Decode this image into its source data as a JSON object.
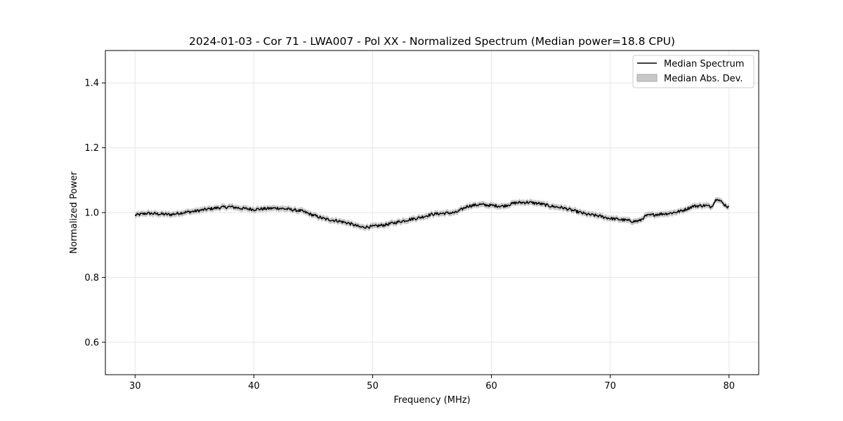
{
  "chart_data": {
    "type": "line",
    "title": "2024-01-03 - Cor 71 - LWA007 - Pol XX - Normalized Spectrum (Median power=18.8 CPU)",
    "xlabel": "Frequency (MHz)",
    "ylabel": "Normalized Power",
    "xlim": [
      27.5,
      82.5
    ],
    "ylim": [
      0.5,
      1.5
    ],
    "xticks": [
      30,
      40,
      50,
      60,
      70,
      80
    ],
    "yticks": [
      0.6,
      0.8,
      1.0,
      1.2,
      1.4
    ],
    "xtick_labels": [
      "30",
      "40",
      "50",
      "60",
      "70",
      "80"
    ],
    "ytick_labels": [
      "0.6",
      "0.8",
      "1.0",
      "1.2",
      "1.4"
    ],
    "grid": true,
    "legend_position": "top-right",
    "series": [
      {
        "name": "Median Spectrum",
        "color": "#000000",
        "x": [
          30,
          31,
          32,
          33,
          34,
          35,
          36,
          37,
          38,
          39,
          40,
          41,
          42,
          43,
          44,
          45,
          46,
          47,
          48,
          49,
          50,
          51,
          52,
          53,
          54,
          55,
          56,
          57,
          58,
          59,
          60,
          61,
          62,
          63,
          64,
          65,
          66,
          67,
          68,
          69,
          70,
          71,
          72,
          72.5,
          73,
          74,
          75,
          76,
          77,
          78,
          78.5,
          79,
          79.5,
          80
        ],
        "y": [
          0.992,
          0.998,
          0.996,
          0.994,
          1.0,
          1.004,
          1.01,
          1.015,
          1.018,
          1.013,
          1.01,
          1.012,
          1.014,
          1.01,
          1.005,
          0.992,
          0.98,
          0.975,
          0.967,
          0.955,
          0.957,
          0.962,
          0.97,
          0.978,
          0.985,
          0.995,
          0.998,
          1.0,
          1.02,
          1.025,
          1.022,
          1.02,
          1.03,
          1.032,
          1.028,
          1.02,
          1.015,
          1.005,
          0.995,
          0.99,
          0.982,
          0.978,
          0.973,
          0.975,
          0.99,
          0.995,
          0.998,
          1.005,
          1.02,
          1.022,
          1.018,
          1.045,
          1.028,
          1.015
        ]
      }
    ],
    "band": {
      "name": "Median Abs. Dev.",
      "color": "#c8c8c8",
      "half_width": 0.009
    }
  }
}
